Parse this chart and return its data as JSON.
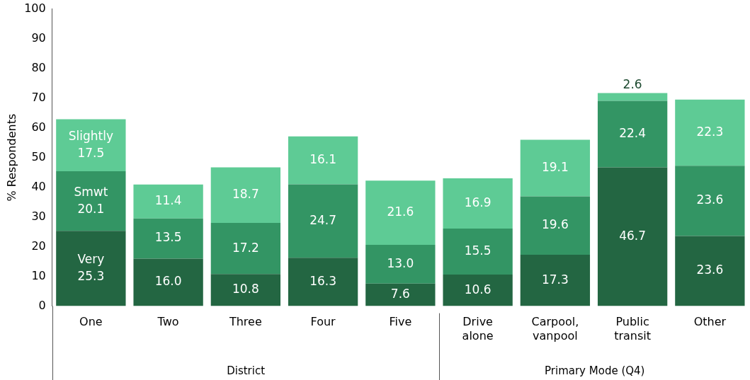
{
  "chart_data": {
    "type": "bar",
    "stacked": true,
    "ylabel": "% Respondents",
    "categories": [
      "One",
      "Two",
      "Three",
      "Four",
      "Five",
      "Drive alone",
      "Carpool, vanpool",
      "Public transit",
      "Other"
    ],
    "series": [
      {
        "name": "Very",
        "color": "#236642",
        "values": [
          25.3,
          16.0,
          10.8,
          16.3,
          7.6,
          10.6,
          17.3,
          46.7,
          23.6
        ],
        "value_labels": [
          "25.3",
          "16.0",
          "10.8",
          "16.3",
          "7.6",
          "10.6",
          "17.3",
          "46.7",
          "23.6"
        ]
      },
      {
        "name": "Smwt",
        "color": "#339564",
        "values": [
          20.1,
          13.5,
          17.2,
          24.7,
          13.0,
          15.5,
          19.6,
          22.4,
          23.6
        ],
        "value_labels": [
          "20.1",
          "13.5",
          "17.2",
          "24.7",
          "13.0",
          "15.5",
          "19.6",
          "22.4",
          "23.6"
        ]
      },
      {
        "name": "Slightly",
        "color": "#5ecb95",
        "values": [
          17.5,
          11.4,
          18.7,
          16.1,
          21.6,
          16.9,
          19.1,
          2.6,
          22.3
        ],
        "value_labels": [
          "17.5",
          "11.4",
          "18.7",
          "16.1",
          "21.6",
          "16.9",
          "19.1",
          "2.6",
          "22.3"
        ]
      }
    ],
    "ylim": [
      0,
      100
    ],
    "yticks": [
      0,
      10,
      20,
      30,
      40,
      50,
      60,
      70,
      80,
      90,
      100
    ],
    "grid": false,
    "legend": false,
    "annotations": [
      "District",
      "Primary Mode (Q4)"
    ]
  }
}
